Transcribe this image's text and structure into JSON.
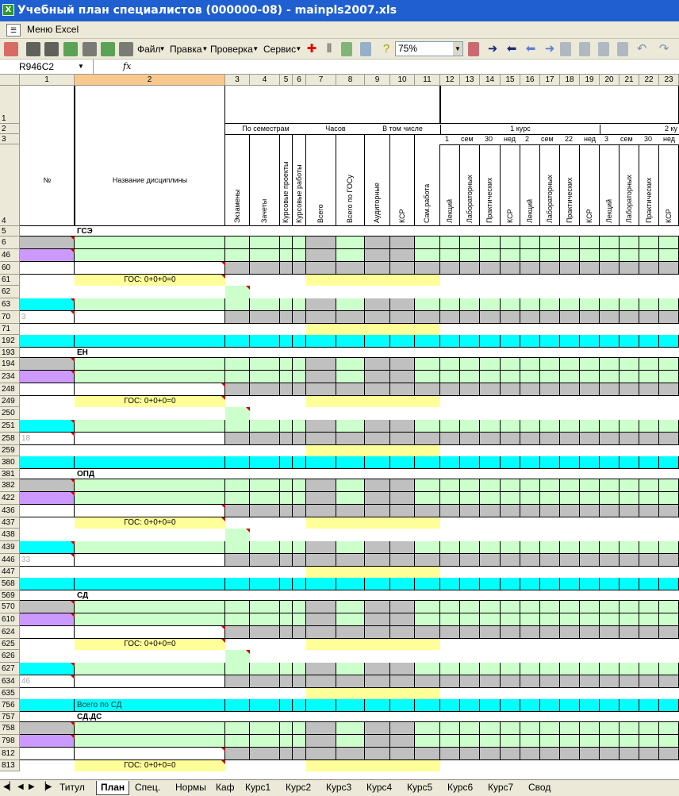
{
  "window": {
    "title": "Учебный план специалистов (000000-08) - mainpls2007.xls",
    "icon": "excel-icon"
  },
  "menubar": {
    "menu_label": "Меню Excel"
  },
  "toolbar": {
    "menus": [
      "Файл",
      "Правка",
      "Проверка",
      "Сервис"
    ],
    "zoom": "75%"
  },
  "formula_bar": {
    "name_box": "R946C2",
    "fx": "fx"
  },
  "column_headers": [
    "1",
    "2",
    "3",
    "4",
    "5",
    "6",
    "7",
    "8",
    "9",
    "10",
    "11",
    "12",
    "13",
    "14",
    "15",
    "16",
    "17",
    "18",
    "19",
    "20",
    "21",
    "22",
    "23"
  ],
  "header": {
    "no": "№",
    "discipline": "Название дисциплины",
    "by_semester": "По семестрам",
    "hours": "Часов",
    "including": "В том числе",
    "course1": "1 курс",
    "course2": "2 ку",
    "sem_cols": [
      "Экзамены",
      "Зачеты",
      "Курсовые проекты",
      "Курсовые работы"
    ],
    "hours_cols": [
      "Всего",
      "Всего по ГОСу"
    ],
    "incl_cols": [
      "Аудиторные",
      "КСР",
      "Сам.работа"
    ],
    "course1_sem1": {
      "num": "1",
      "sem": "сем",
      "weeks": "30",
      "ned": "нед"
    },
    "course1_sem2": {
      "num": "2",
      "sem": "сем",
      "weeks": "22",
      "ned": "нед"
    },
    "course2_sem3": {
      "num": "3",
      "sem": "сем",
      "weeks": "30",
      "ned": "нед"
    },
    "load_cols": [
      "Лекций",
      "Лабораторных",
      "Практических",
      "КСР"
    ]
  },
  "rows": [
    {
      "n": "1",
      "type": "blank-top"
    },
    {
      "n": "2",
      "type": "hdr"
    },
    {
      "n": "3",
      "type": "hdr"
    },
    {
      "n": "4",
      "type": "hdr"
    },
    {
      "n": "5",
      "type": "section",
      "label": "ГСЭ"
    },
    {
      "n": "6",
      "type": "gray"
    },
    {
      "n": "46",
      "type": "purple"
    },
    {
      "n": "60",
      "type": "white"
    },
    {
      "n": "61",
      "type": "gos",
      "label": "ГОС: 0+0+0=0"
    },
    {
      "n": "62",
      "type": "small"
    },
    {
      "n": "63",
      "type": "cyan"
    },
    {
      "n": "70",
      "type": "count",
      "label": "3"
    },
    {
      "n": "71",
      "type": "yellow"
    },
    {
      "n": "192",
      "type": "total"
    },
    {
      "n": "193",
      "type": "section",
      "label": "ЕН"
    },
    {
      "n": "194",
      "type": "gray"
    },
    {
      "n": "234",
      "type": "purple"
    },
    {
      "n": "248",
      "type": "white"
    },
    {
      "n": "249",
      "type": "gos",
      "label": "ГОС: 0+0+0=0"
    },
    {
      "n": "250",
      "type": "small"
    },
    {
      "n": "251",
      "type": "cyan"
    },
    {
      "n": "258",
      "type": "count",
      "label": "18"
    },
    {
      "n": "259",
      "type": "yellow"
    },
    {
      "n": "380",
      "type": "total"
    },
    {
      "n": "381",
      "type": "section",
      "label": "ОПД"
    },
    {
      "n": "382",
      "type": "gray"
    },
    {
      "n": "422",
      "type": "purple"
    },
    {
      "n": "436",
      "type": "white"
    },
    {
      "n": "437",
      "type": "gos",
      "label": "ГОС: 0+0+0=0"
    },
    {
      "n": "438",
      "type": "small"
    },
    {
      "n": "439",
      "type": "cyan"
    },
    {
      "n": "446",
      "type": "count",
      "label": "33"
    },
    {
      "n": "447",
      "type": "yellow"
    },
    {
      "n": "568",
      "type": "total"
    },
    {
      "n": "569",
      "type": "section",
      "label": "СД"
    },
    {
      "n": "570",
      "type": "gray"
    },
    {
      "n": "610",
      "type": "purple"
    },
    {
      "n": "624",
      "type": "white"
    },
    {
      "n": "625",
      "type": "gos",
      "label": "ГОС: 0+0+0=0"
    },
    {
      "n": "626",
      "type": "small"
    },
    {
      "n": "627",
      "type": "cyan"
    },
    {
      "n": "634",
      "type": "count",
      "label": "46"
    },
    {
      "n": "635",
      "type": "yellow"
    },
    {
      "n": "756",
      "type": "total",
      "label": "Всего по СД"
    },
    {
      "n": "757",
      "type": "section",
      "label": "СД.ДС"
    },
    {
      "n": "758",
      "type": "gray"
    },
    {
      "n": "798",
      "type": "purple"
    },
    {
      "n": "812",
      "type": "white"
    },
    {
      "n": "813",
      "type": "gos",
      "label": "ГОС: 0+0+0=0"
    }
  ],
  "sheet_tabs": [
    "Титул",
    "План",
    "Спец.",
    "Нормы",
    "Каф",
    "Курс1",
    "Курс2",
    "Курс3",
    "Курс4",
    "Курс5",
    "Курс6",
    "Курс7",
    "Свод"
  ],
  "active_tab": "План",
  "colors": {
    "green": "#ccffcc",
    "gray": "#c0c0c0",
    "purple": "#cc99ff",
    "cyan": "#00ffff",
    "yellow": "#ffff99",
    "title": "#1f5fd0"
  }
}
